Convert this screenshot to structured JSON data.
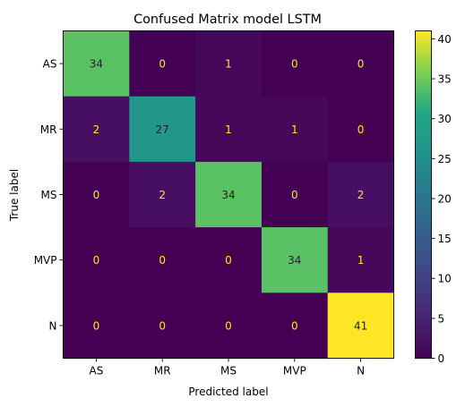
{
  "chart_data": {
    "type": "heatmap",
    "title": "Confused Matrix model LSTM",
    "xlabel": "Predicted label",
    "ylabel": "True label",
    "x_categories": [
      "AS",
      "MR",
      "MS",
      "MVP",
      "N"
    ],
    "y_categories": [
      "AS",
      "MR",
      "MS",
      "MVP",
      "N"
    ],
    "values": [
      [
        34,
        0,
        1,
        0,
        0
      ],
      [
        2,
        27,
        1,
        1,
        0
      ],
      [
        0,
        2,
        34,
        0,
        2
      ],
      [
        0,
        0,
        0,
        34,
        1
      ],
      [
        0,
        0,
        0,
        0,
        41
      ]
    ],
    "colormap": "viridis",
    "colorbar": {
      "range": [
        0,
        41
      ],
      "ticks": [
        0,
        5,
        10,
        15,
        20,
        25,
        30,
        35,
        40
      ]
    },
    "text_colors": {
      "dark_cell": "#fde725",
      "light_cell": "#222222"
    }
  }
}
